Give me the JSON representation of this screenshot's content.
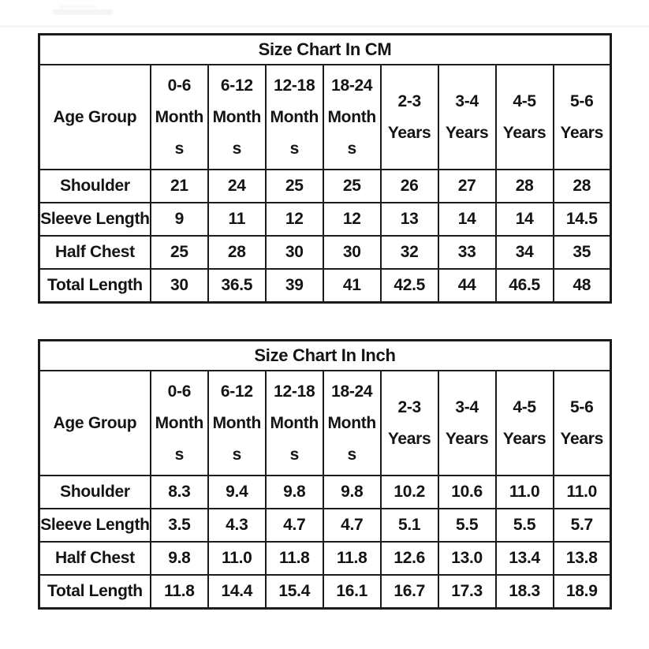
{
  "page": {
    "background": "#ffffff",
    "border_color": "#1c1c1c",
    "text_color": "#141414",
    "watermark_color": "#f5f5f5"
  },
  "tables": {
    "cm": {
      "title": "Size Chart In CM",
      "row_header": "Age Group",
      "age_columns": [
        [
          "0-6",
          "Month",
          "s"
        ],
        [
          "6-12",
          "Month",
          "s"
        ],
        [
          "12-18",
          "Month",
          "s"
        ],
        [
          "18-24",
          "Month",
          "s"
        ],
        [
          "2-3",
          "Years"
        ],
        [
          "3-4",
          "Years"
        ],
        [
          "4-5",
          "Years"
        ],
        [
          "5-6",
          "Years"
        ]
      ],
      "rows": [
        {
          "label": "Shoulder",
          "values": [
            "21",
            "24",
            "25",
            "25",
            "26",
            "27",
            "28",
            "28"
          ]
        },
        {
          "label": "Sleeve Length",
          "values": [
            "9",
            "11",
            "12",
            "12",
            "13",
            "14",
            "14",
            "14.5"
          ]
        },
        {
          "label": "Half Chest",
          "values": [
            "25",
            "28",
            "30",
            "30",
            "32",
            "33",
            "34",
            "35"
          ]
        },
        {
          "label": "Total Length",
          "values": [
            "30",
            "36.5",
            "39",
            "41",
            "42.5",
            "44",
            "46.5",
            "48"
          ]
        }
      ]
    },
    "inch": {
      "title": "Size Chart In Inch",
      "row_header": "Age Group",
      "age_columns": [
        [
          "0-6",
          "Month",
          "s"
        ],
        [
          "6-12",
          "Month",
          "s"
        ],
        [
          "12-18",
          "Month",
          "s"
        ],
        [
          "18-24",
          "Month",
          "s"
        ],
        [
          "2-3",
          "Years"
        ],
        [
          "3-4",
          "Years"
        ],
        [
          "4-5",
          "Years"
        ],
        [
          "5-6",
          "Years"
        ]
      ],
      "rows": [
        {
          "label": "Shoulder",
          "values": [
            "8.3",
            "9.4",
            "9.8",
            "9.8",
            "10.2",
            "10.6",
            "11.0",
            "11.0"
          ]
        },
        {
          "label": "Sleeve Length",
          "values": [
            "3.5",
            "4.3",
            "4.7",
            "4.7",
            "5.1",
            "5.5",
            "5.5",
            "5.7"
          ]
        },
        {
          "label": "Half Chest",
          "values": [
            "9.8",
            "11.0",
            "11.8",
            "11.8",
            "12.6",
            "13.0",
            "13.4",
            "13.8"
          ]
        },
        {
          "label": "Total Length",
          "values": [
            "11.8",
            "14.4",
            "15.4",
            "16.1",
            "16.7",
            "17.3",
            "18.3",
            "18.9"
          ]
        }
      ]
    }
  }
}
